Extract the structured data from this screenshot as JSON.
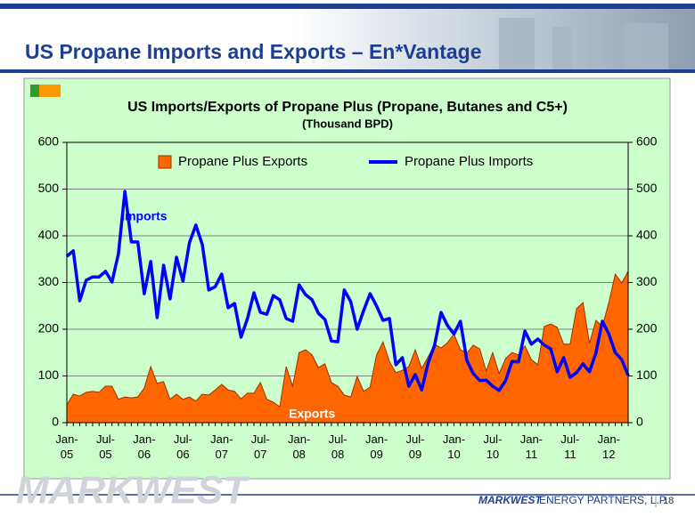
{
  "slide_title": "US Propane Imports and Exports – En*Vantage",
  "watermark": "MARKWEST",
  "footer_brand": "MARKWEST",
  "footer_company": "ENERGY PARTNERS, L.P.",
  "page_number": "18",
  "chart_data": {
    "type": "line",
    "title": "US Imports/Exports of Propane Plus (Propane, Butanes and C5+)",
    "subtitle": "(Thousand BPD)",
    "annotations": [
      {
        "text": "Imports",
        "color": "#0000ff",
        "x": 12,
        "y": 440
      },
      {
        "text": "Exports",
        "color": "#ffffff",
        "x": 38,
        "y": 18
      }
    ],
    "categories": [
      "Jan-05",
      null,
      null,
      null,
      null,
      null,
      "Jul-05",
      null,
      null,
      null,
      null,
      null,
      "Jan-06",
      null,
      null,
      null,
      null,
      null,
      "Jul-06",
      null,
      null,
      null,
      null,
      null,
      "Jan-07",
      null,
      null,
      null,
      null,
      null,
      "Jul-07",
      null,
      null,
      null,
      null,
      null,
      "Jan-08",
      null,
      null,
      null,
      null,
      null,
      "Jul-08",
      null,
      null,
      null,
      null,
      null,
      "Jan-09",
      null,
      null,
      null,
      null,
      null,
      "Jul-09",
      null,
      null,
      null,
      null,
      null,
      "Jan-10",
      null,
      null,
      null,
      null,
      null,
      "Jul-10",
      null,
      null,
      null,
      null,
      null,
      "Jan-11",
      null,
      null,
      null,
      null,
      null,
      "Jul-11",
      null,
      null,
      null,
      null,
      null,
      "Jan-12",
      null,
      null,
      null
    ],
    "series": [
      {
        "name": "Propane Plus Exports",
        "style": "area",
        "color": "#ff6600",
        "edge": "#993300",
        "values": [
          38,
          61,
          57,
          65,
          67,
          65,
          78,
          78,
          50,
          55,
          53,
          55,
          74,
          120,
          84,
          88,
          50,
          61,
          50,
          55,
          46,
          61,
          59,
          70,
          82,
          70,
          67,
          51,
          63,
          63,
          86,
          50,
          44,
          34,
          120,
          78,
          150,
          156,
          145,
          118,
          126,
          86,
          78,
          59,
          55,
          99,
          67,
          76,
          145,
          173,
          131,
          107,
          112,
          120,
          156,
          116,
          141,
          168,
          160,
          171,
          190,
          156,
          149,
          166,
          158,
          110,
          150,
          105,
          137,
          150,
          145,
          164,
          135,
          124,
          206,
          211,
          204,
          168,
          168,
          244,
          257,
          170,
          219,
          206,
          257,
          318,
          299,
          324
        ]
      },
      {
        "name": "Propane Plus Imports",
        "style": "line",
        "color": "#0000ff",
        "values": [
          356,
          368,
          261,
          305,
          312,
          312,
          324,
          301,
          362,
          495,
          387,
          387,
          276,
          345,
          225,
          337,
          265,
          354,
          303,
          385,
          423,
          381,
          284,
          291,
          318,
          246,
          255,
          183,
          223,
          278,
          236,
          232,
          272,
          263,
          223,
          217,
          295,
          274,
          263,
          234,
          221,
          175,
          173,
          284,
          259,
          200,
          240,
          276,
          250,
          219,
          223,
          124,
          139,
          78,
          103,
          70,
          128,
          166,
          236,
          208,
          190,
          217,
          133,
          105,
          90,
          91,
          78,
          69,
          90,
          131,
          130,
          196,
          168,
          179,
          166,
          158,
          109,
          139,
          97,
          107,
          126,
          109,
          149,
          217,
          190,
          150,
          135,
          101
        ]
      }
    ],
    "ylim": [
      0,
      600
    ],
    "yticks": [
      0,
      100,
      200,
      300,
      400,
      500,
      600
    ],
    "y2lim": [
      0,
      600
    ],
    "y2ticks": [
      0,
      100,
      200,
      300,
      400,
      500,
      600
    ],
    "grid": true,
    "legend": "top",
    "background": "#ccffcc"
  }
}
